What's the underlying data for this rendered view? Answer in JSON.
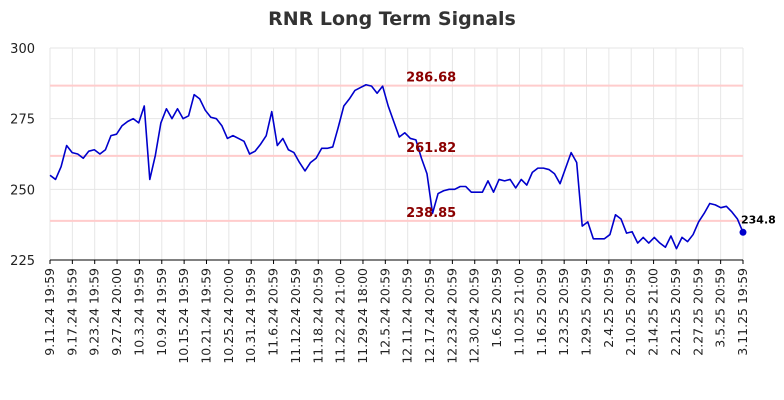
{
  "chart_data": {
    "type": "line",
    "title": "RNR Long Term Signals",
    "xlabel": "",
    "ylabel": "",
    "ylim": [
      225,
      300
    ],
    "y_ticks": [
      "225",
      "250",
      "275",
      "300"
    ],
    "x_tick_labels": [
      "9.11.24 19:59",
      "9.17.24 19:59",
      "9.23.24 19:59",
      "9.27.24 20:00",
      "10.3.24 19:59",
      "10.9.24 19:59",
      "10.15.24 19:59",
      "10.21.24 19:59",
      "10.25.24 20:00",
      "10.31.24 19:59",
      "11.6.24 20:59",
      "11.12.24 20:59",
      "11.18.24 20:59",
      "11.22.24 21:00",
      "11.29.24 18:00",
      "12.5.24 20:59",
      "12.11.24 20:59",
      "12.17.24 20:59",
      "12.23.24 20:59",
      "12.30.24 20:59",
      "1.6.25 20:59",
      "1.10.25 21:00",
      "1.16.25 20:59",
      "1.23.25 20:59",
      "1.29.25 20:59",
      "2.4.25 20:59",
      "2.10.25 20:59",
      "2.14.25 21:00",
      "2.21.25 20:59",
      "2.27.25 20:59",
      "3.5.25 20:59",
      "3.11.25 19:59"
    ],
    "grid": true,
    "line_color": "#0000cc",
    "series": [
      {
        "values": [
          255,
          253.5,
          258,
          265.5,
          263,
          262.5,
          261,
          263.5,
          264,
          262.5,
          264,
          269,
          269.5,
          272.5,
          274,
          275,
          273.5,
          279.5,
          253.5,
          262,
          273.5,
          278.5,
          275,
          278.5,
          275,
          276,
          283.5,
          282,
          278,
          275.5,
          275,
          272.5,
          268,
          269,
          268,
          267,
          262.5,
          263.5,
          266,
          269,
          277.5,
          265.5,
          268,
          264,
          263,
          259.5,
          256.5,
          259.5,
          261,
          264.5,
          264.5,
          265,
          272,
          279.5,
          282,
          285,
          286,
          287,
          286.5,
          284,
          286.5,
          279.5,
          274,
          268.5,
          270,
          268,
          267.5,
          261,
          255.5,
          241.5,
          248.5,
          249.5,
          250,
          250,
          251,
          251,
          249,
          249,
          249,
          253,
          249,
          253.5,
          253,
          253.5,
          250.5,
          253.5,
          251.5,
          256,
          257.5,
          257.5,
          257,
          255.5,
          252,
          257.5,
          263,
          259.5,
          237,
          238.5,
          232.5,
          232.5,
          232.5,
          234,
          241,
          239.5,
          234.5,
          235,
          231,
          233,
          231,
          233,
          231,
          229.5,
          233.5,
          229,
          233,
          231.5,
          234,
          238.5,
          241.5,
          245,
          244.5,
          243.5,
          244,
          242,
          239.5,
          234.8
        ]
      }
    ],
    "reference_lines": [
      {
        "value": 286.68,
        "label": "286.68"
      },
      {
        "value": 261.82,
        "label": "261.82"
      },
      {
        "value": 238.85,
        "label": "238.85"
      }
    ],
    "reference_line_color": "#ffcccc",
    "annotation_color": "#8b0000",
    "last_value_label": "234.8"
  }
}
